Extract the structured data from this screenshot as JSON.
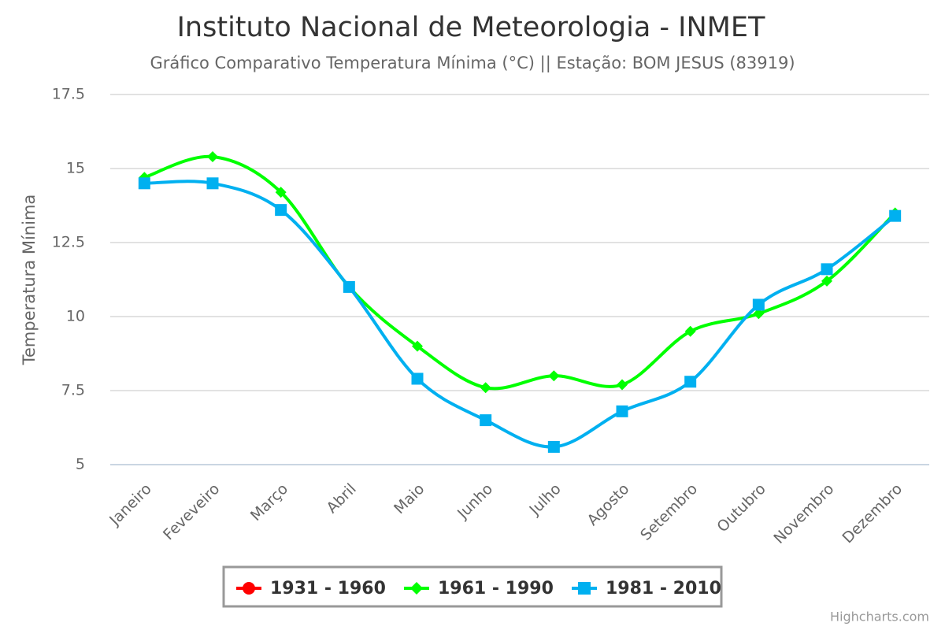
{
  "chart_data": {
    "type": "line",
    "title": "Instituto Nacional de Meteorologia - INMET",
    "subtitle": "Gráfico Comparativo Temperatura Mínima (°C) || Estação: BOM JESUS (83919)",
    "y_label": "Temperatura Mínima",
    "credits": "Highcharts.com",
    "categories": [
      "Janeiro",
      "Feveveiro",
      "Março",
      "Abril",
      "Maio",
      "Junho",
      "Julho",
      "Agosto",
      "Setembro",
      "Outubro",
      "Novembro",
      "Dezembro"
    ],
    "series": [
      {
        "name": "1931 - 1960",
        "color": "#ff0000",
        "marker": "circle",
        "values": [
          null,
          null,
          null,
          null,
          null,
          null,
          null,
          null,
          null,
          null,
          null,
          null
        ]
      },
      {
        "name": "1961 - 1990",
        "color": "#00ff00",
        "marker": "diamond",
        "values": [
          14.7,
          15.4,
          14.2,
          11.0,
          9.0,
          7.6,
          8.0,
          7.7,
          9.5,
          10.1,
          11.2,
          13.5
        ]
      },
      {
        "name": "1981 - 2010",
        "color": "#00b0f0",
        "marker": "square",
        "values": [
          14.5,
          14.5,
          13.6,
          11.0,
          7.9,
          6.5,
          5.6,
          6.8,
          7.8,
          10.4,
          11.6,
          13.4
        ]
      }
    ],
    "ylim": [
      5,
      17.5
    ],
    "yticks": [
      5,
      7.5,
      10,
      12.5,
      15,
      17.5
    ],
    "grid": true
  }
}
